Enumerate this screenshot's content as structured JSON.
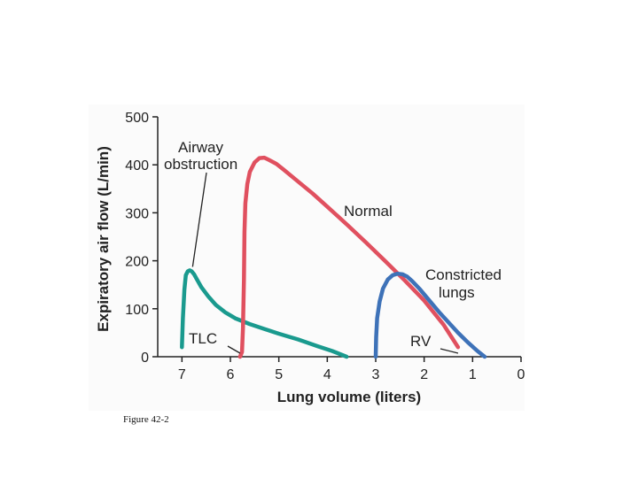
{
  "caption": "Figure 42-2",
  "chart_data": {
    "type": "line",
    "title": "",
    "xlabel": "Lung volume (liters)",
    "ylabel": "Expiratory air flow (L/min)",
    "xlim": [
      7.5,
      0
    ],
    "ylim": [
      0,
      500
    ],
    "x_reversed": true,
    "xticks": [
      7,
      6,
      5,
      4,
      3,
      2,
      1,
      0
    ],
    "yticks": [
      0,
      100,
      200,
      300,
      400,
      500
    ],
    "series": [
      {
        "name": "Airway obstruction",
        "color": "#1a9a8e",
        "x": [
          7.0,
          6.98,
          6.95,
          6.92,
          6.88,
          6.84,
          6.8,
          6.75,
          6.7,
          6.6,
          6.45,
          6.3,
          6.1,
          5.9,
          5.6,
          5.3,
          5.0,
          4.6,
          4.2,
          3.9,
          3.6
        ],
        "y": [
          20,
          80,
          140,
          170,
          178,
          180,
          178,
          172,
          163,
          145,
          125,
          108,
          92,
          80,
          68,
          58,
          48,
          36,
          22,
          12,
          0
        ]
      },
      {
        "name": "Normal",
        "color": "#e0505f",
        "x": [
          5.8,
          5.76,
          5.74,
          5.72,
          5.71,
          5.69,
          5.65,
          5.6,
          5.5,
          5.4,
          5.3,
          5.2,
          5.05,
          4.9,
          4.6,
          4.3,
          4.0,
          3.6,
          3.2,
          2.8,
          2.4,
          2.0,
          1.6,
          1.3
        ],
        "y": [
          0,
          10,
          60,
          160,
          260,
          320,
          360,
          385,
          405,
          414,
          415,
          410,
          402,
          390,
          365,
          340,
          313,
          276,
          238,
          199,
          159,
          117,
          67,
          20
        ]
      },
      {
        "name": "Constricted lungs",
        "color": "#3e72b8",
        "x": [
          3.0,
          2.99,
          2.97,
          2.92,
          2.85,
          2.75,
          2.65,
          2.55,
          2.45,
          2.35,
          2.25,
          2.1,
          1.9,
          1.7,
          1.5,
          1.3,
          1.1,
          0.9,
          0.75
        ],
        "y": [
          0,
          40,
          80,
          115,
          142,
          161,
          170,
          173,
          172,
          167,
          158,
          142,
          118,
          94,
          72,
          50,
          30,
          12,
          0
        ]
      }
    ],
    "annotations": [
      {
        "lines": [
          "Airway",
          "obstruction"
        ],
        "points_to": {
          "x": 6.78,
          "y": 180
        }
      },
      {
        "lines": [
          "Normal"
        ]
      },
      {
        "lines": [
          "Constricted",
          "lungs"
        ]
      },
      {
        "lines": [
          "TLC"
        ],
        "points_to": {
          "x": 5.8,
          "y": 0
        }
      },
      {
        "lines": [
          "RV"
        ],
        "points_to": {
          "x": 1.3,
          "y": 0
        }
      }
    ]
  }
}
